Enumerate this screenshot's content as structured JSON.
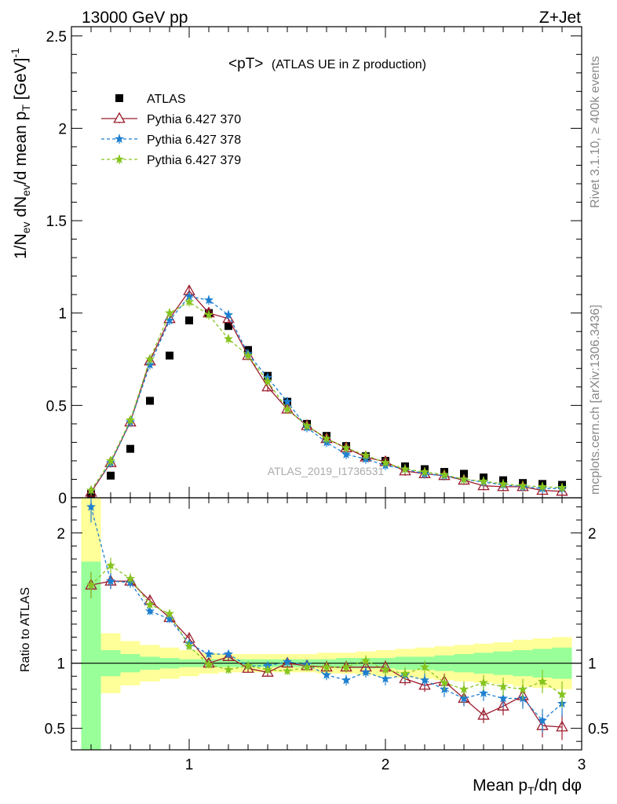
{
  "header": {
    "left": "13000 GeV pp",
    "right": "Z+Jet"
  },
  "side": {
    "rivet": "Rivet 3.1.10, ≥ 400k events",
    "mcplots": "mcplots.cern.ch [arXiv:1306.3436]"
  },
  "watermark": "ATLAS_2019_I1736531",
  "colors": {
    "atlas": "#000000",
    "p370": "#9b1c2e",
    "p378": "#1e7fd0",
    "p379": "#86c41f",
    "band_yellow": "#ffff99",
    "band_green": "#99ff99"
  },
  "chart_data": [
    {
      "type": "scatter",
      "title_main": "<pT>",
      "title_sub": "(ATLAS UE in Z production)",
      "ylabel": "1/N_ev dN_ev/d mean p_T [GeV]^-1",
      "xlim": [
        0.4,
        3.0
      ],
      "ylim": [
        0,
        2.55
      ],
      "yticks": [
        {
          "v": 0,
          "label": "0"
        },
        {
          "v": 0.5,
          "label": "0.5"
        },
        {
          "v": 1,
          "label": "1"
        },
        {
          "v": 1.5,
          "label": "1.5"
        },
        {
          "v": 2,
          "label": "2"
        },
        {
          "v": 2.5,
          "label": "2.5"
        }
      ],
      "x": [
        0.5,
        0.6,
        0.7,
        0.8,
        0.9,
        1.0,
        1.1,
        1.2,
        1.3,
        1.4,
        1.5,
        1.6,
        1.7,
        1.8,
        1.9,
        2.0,
        2.1,
        2.2,
        2.3,
        2.4,
        2.5,
        2.6,
        2.7,
        2.8,
        2.9
      ],
      "series": [
        {
          "name": "ATLAS",
          "marker": "square",
          "values": [
            0.02,
            0.12,
            0.265,
            0.525,
            0.77,
            0.96,
            1.0,
            0.93,
            0.8,
            0.66,
            0.52,
            0.4,
            0.335,
            0.28,
            0.225,
            0.2,
            0.17,
            0.155,
            0.14,
            0.13,
            0.11,
            0.095,
            0.08,
            0.075,
            0.07
          ]
        },
        {
          "name": "Pythia 6.427 370",
          "marker": "triangle",
          "values": [
            0.03,
            0.19,
            0.41,
            0.74,
            0.97,
            1.12,
            1.0,
            0.97,
            0.77,
            0.6,
            0.48,
            0.39,
            0.32,
            0.27,
            0.22,
            0.195,
            0.145,
            0.13,
            0.12,
            0.095,
            0.065,
            0.06,
            0.06,
            0.04,
            0.035
          ]
        },
        {
          "name": "Pythia 6.427 378",
          "marker": "star",
          "values": [
            0.04,
            0.19,
            0.41,
            0.72,
            0.96,
            1.09,
            1.07,
            0.99,
            0.78,
            0.65,
            0.52,
            0.38,
            0.3,
            0.235,
            0.21,
            0.175,
            0.155,
            0.13,
            0.12,
            0.1,
            0.085,
            0.07,
            0.06,
            0.05,
            0.05
          ]
        },
        {
          "name": "Pythia 6.427 379",
          "marker": "star",
          "values": [
            0.04,
            0.2,
            0.42,
            0.75,
            1.0,
            1.06,
            0.99,
            0.86,
            0.77,
            0.63,
            0.48,
            0.39,
            0.32,
            0.27,
            0.23,
            0.19,
            0.155,
            0.14,
            0.125,
            0.1,
            0.09,
            0.075,
            0.065,
            0.06,
            0.055
          ]
        }
      ]
    },
    {
      "type": "scatter",
      "ylabel": "Ratio to ATLAS",
      "xlabel": "Mean p_T/dη dφ",
      "xlim": [
        0.4,
        3.0
      ],
      "ylim": [
        0.335,
        2.27
      ],
      "xticks": [
        {
          "v": 1,
          "label": "1"
        },
        {
          "v": 2,
          "label": "2"
        },
        {
          "v": 3,
          "label": "3"
        }
      ],
      "yticks": [
        {
          "v": 0.5,
          "label": "0.5"
        },
        {
          "v": 1,
          "label": "1"
        },
        {
          "v": 2,
          "label": "2"
        }
      ],
      "x": [
        0.5,
        0.6,
        0.7,
        0.8,
        0.9,
        1.0,
        1.1,
        1.2,
        1.3,
        1.4,
        1.5,
        1.6,
        1.7,
        1.8,
        1.9,
        2.0,
        2.1,
        2.2,
        2.3,
        2.4,
        2.5,
        2.6,
        2.7,
        2.8,
        2.9
      ],
      "bands": {
        "edges": [
          0.45,
          0.55,
          0.65,
          0.75,
          0.85,
          0.95,
          1.05,
          1.15,
          1.25,
          1.35,
          1.45,
          1.55,
          1.65,
          1.75,
          1.85,
          1.95,
          2.05,
          2.15,
          2.25,
          2.35,
          2.45,
          2.55,
          2.65,
          2.75,
          2.85,
          2.95
        ],
        "yellow_rel": [
          1.0,
          0.23,
          0.17,
          0.14,
          0.12,
          0.1,
          0.08,
          0.07,
          0.07,
          0.07,
          0.07,
          0.07,
          0.08,
          0.08,
          0.09,
          0.1,
          0.11,
          0.12,
          0.13,
          0.14,
          0.15,
          0.16,
          0.18,
          0.19,
          0.2
        ],
        "green_rel": [
          1.0,
          0.1,
          0.07,
          0.05,
          0.04,
          0.03,
          0.03,
          0.03,
          0.03,
          0.03,
          0.03,
          0.03,
          0.03,
          0.04,
          0.04,
          0.04,
          0.05,
          0.05,
          0.06,
          0.07,
          0.08,
          0.09,
          0.1,
          0.11,
          0.12
        ],
        "yellow_top_first": 2.27,
        "green_top_first": 1.78
      },
      "series": [
        {
          "name": "Pythia 6.427 370",
          "values": [
            1.6,
            1.63,
            1.63,
            1.48,
            1.35,
            1.19,
            1.0,
            1.05,
            0.96,
            0.93,
            1.0,
            0.98,
            0.97,
            0.97,
            0.97,
            0.97,
            0.88,
            0.83,
            0.86,
            0.73,
            0.6,
            0.67,
            0.75,
            0.52,
            0.51
          ],
          "err": [
            0.1,
            0.06,
            0.04,
            0.03,
            0.03,
            0.03,
            0.03,
            0.03,
            0.03,
            0.03,
            0.03,
            0.03,
            0.04,
            0.04,
            0.04,
            0.05,
            0.05,
            0.05,
            0.06,
            0.06,
            0.06,
            0.07,
            0.08,
            0.09,
            0.1
          ]
        },
        {
          "name": "Pythia 6.427 378",
          "values": [
            2.2,
            1.63,
            1.62,
            1.4,
            1.34,
            1.15,
            1.07,
            1.07,
            0.98,
            0.98,
            1.01,
            0.99,
            0.91,
            0.87,
            0.93,
            0.88,
            0.91,
            0.87,
            0.8,
            0.73,
            0.77,
            0.73,
            0.73,
            0.56,
            0.69
          ],
          "err": [
            0.12,
            0.06,
            0.04,
            0.03,
            0.03,
            0.03,
            0.03,
            0.03,
            0.03,
            0.03,
            0.03,
            0.03,
            0.04,
            0.04,
            0.04,
            0.05,
            0.05,
            0.05,
            0.06,
            0.06,
            0.06,
            0.07,
            0.08,
            0.09,
            0.1
          ]
        },
        {
          "name": "Pythia 6.427 379",
          "values": [
            1.6,
            1.75,
            1.65,
            1.45,
            1.38,
            1.13,
            0.99,
            0.95,
            0.98,
            0.95,
            0.94,
            0.97,
            0.97,
            0.97,
            1.02,
            0.95,
            0.92,
            0.97,
            0.85,
            0.8,
            0.85,
            0.82,
            0.8,
            0.86,
            0.76
          ],
          "err": [
            0.1,
            0.06,
            0.04,
            0.03,
            0.03,
            0.03,
            0.03,
            0.03,
            0.03,
            0.03,
            0.03,
            0.03,
            0.04,
            0.04,
            0.04,
            0.05,
            0.05,
            0.05,
            0.06,
            0.06,
            0.06,
            0.07,
            0.08,
            0.09,
            0.1
          ]
        }
      ]
    }
  ]
}
